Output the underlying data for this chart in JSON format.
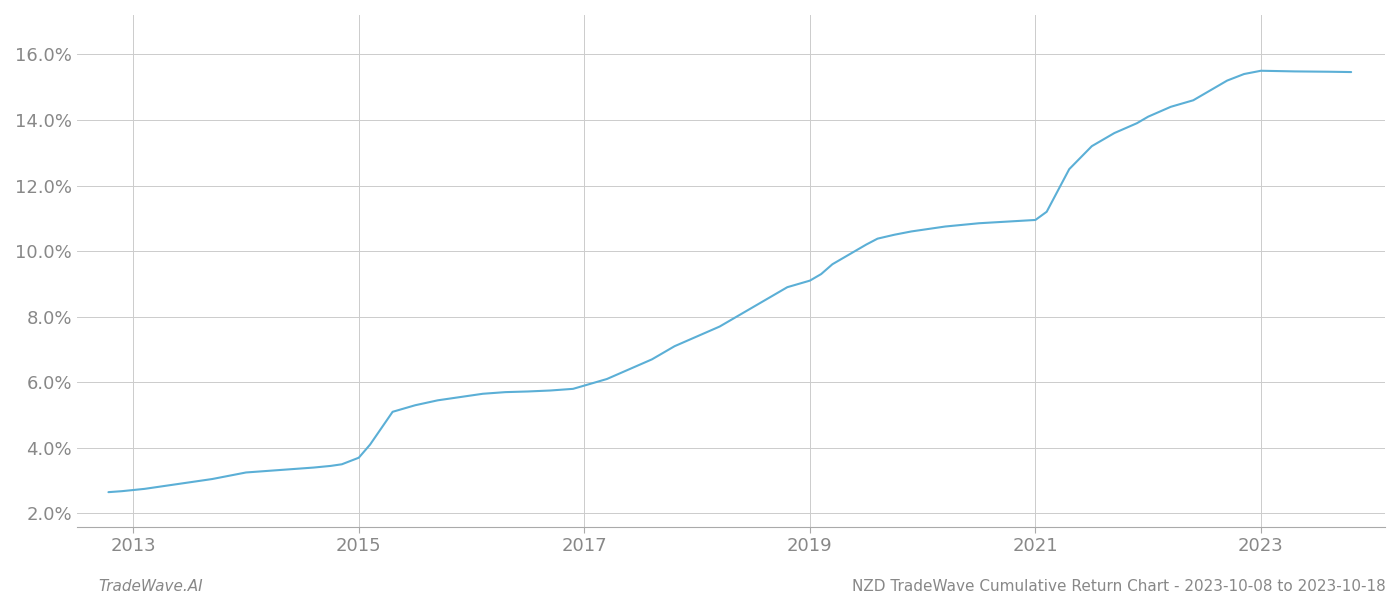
{
  "title": "NZD TradeWave Cumulative Return Chart - 2023-10-08 to 2023-10-18",
  "footer_left": "TradeWave.AI",
  "line_color": "#5bafd6",
  "background_color": "#ffffff",
  "grid_color": "#cccccc",
  "axis_color": "#aaaaaa",
  "tick_label_color": "#888888",
  "ylim": [
    0.016,
    0.172
  ],
  "xlim": [
    2012.5,
    2024.1
  ],
  "x_ticks": [
    2013,
    2015,
    2017,
    2019,
    2021,
    2023
  ],
  "y_ticks": [
    0.02,
    0.04,
    0.06,
    0.08,
    0.1,
    0.12,
    0.14,
    0.16
  ],
  "data_x": [
    2012.78,
    2012.9,
    2013.1,
    2013.3,
    2013.5,
    2013.7,
    2013.85,
    2014.0,
    2014.2,
    2014.4,
    2014.6,
    2014.75,
    2014.85,
    2015.0,
    2015.1,
    2015.2,
    2015.3,
    2015.5,
    2015.7,
    2015.9,
    2016.1,
    2016.3,
    2016.5,
    2016.7,
    2016.9,
    2017.0,
    2017.2,
    2017.4,
    2017.6,
    2017.8,
    2018.0,
    2018.2,
    2018.4,
    2018.6,
    2018.8,
    2019.0,
    2019.1,
    2019.2,
    2019.35,
    2019.5,
    2019.6,
    2019.75,
    2019.9,
    2020.0,
    2020.2,
    2020.5,
    2020.75,
    2021.0,
    2021.1,
    2021.3,
    2021.5,
    2021.7,
    2021.9,
    2022.0,
    2022.2,
    2022.4,
    2022.55,
    2022.7,
    2022.85,
    2023.0,
    2023.3,
    2023.6,
    2023.8
  ],
  "data_y": [
    0.0265,
    0.0268,
    0.0275,
    0.0285,
    0.0295,
    0.0305,
    0.0315,
    0.0325,
    0.033,
    0.0335,
    0.034,
    0.0345,
    0.035,
    0.037,
    0.041,
    0.046,
    0.051,
    0.053,
    0.0545,
    0.0555,
    0.0565,
    0.057,
    0.0572,
    0.0575,
    0.058,
    0.059,
    0.061,
    0.064,
    0.067,
    0.071,
    0.074,
    0.077,
    0.081,
    0.085,
    0.089,
    0.091,
    0.093,
    0.096,
    0.099,
    0.102,
    0.1038,
    0.105,
    0.106,
    0.1065,
    0.1075,
    0.1085,
    0.109,
    0.1095,
    0.112,
    0.125,
    0.132,
    0.136,
    0.139,
    0.141,
    0.144,
    0.146,
    0.149,
    0.152,
    0.154,
    0.155,
    0.1548,
    0.1547,
    0.1546
  ],
  "line_width": 1.5,
  "title_fontsize": 11,
  "tick_fontsize": 13,
  "footer_fontsize": 11
}
